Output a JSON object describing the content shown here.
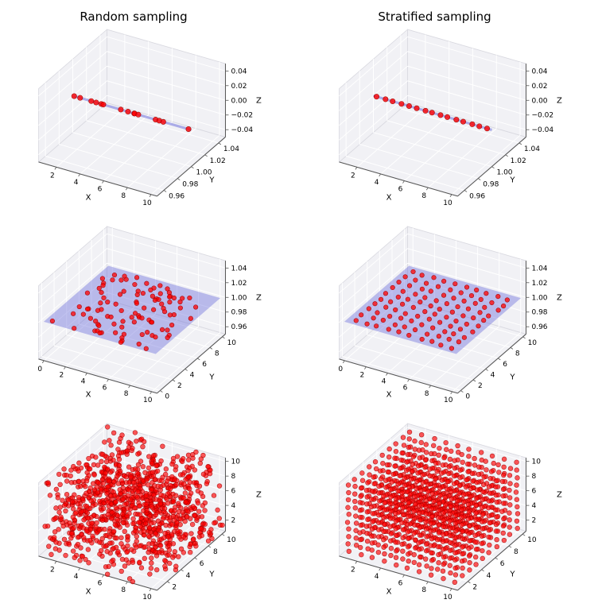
{
  "columns": [
    {
      "title": "Random sampling"
    },
    {
      "title": "Stratified sampling"
    }
  ],
  "chart_data": [
    {
      "id": "random-1d",
      "type": "scatter3d",
      "column": "Random sampling",
      "sampling": "random",
      "dims": 1,
      "n": 15,
      "seed": 7,
      "jitter": 0.3,
      "domain": {
        "x": [
          0.5,
          10.5
        ]
      },
      "fixed": {
        "y": 1.0,
        "z": 0.0
      },
      "overlay": {
        "kind": "line",
        "x": [
          0.5,
          10.5
        ],
        "color": "#6366d9",
        "alpha": 0.5
      },
      "xlabel": "X",
      "ylabel": "Y",
      "zlabel": "Z",
      "xlim": [
        0.5,
        10.5
      ],
      "ylim": [
        0.95,
        1.05
      ],
      "zlim": [
        -0.05,
        0.05
      ],
      "xticks": [
        2,
        4,
        6,
        8,
        10
      ],
      "xtick_labels": [
        "2",
        "4",
        "6",
        "8",
        "10"
      ],
      "yticks": [
        0.96,
        0.98,
        1.0,
        1.02,
        1.04
      ],
      "ytick_labels": [
        "0.96",
        "0.98",
        "1.00",
        "1.02",
        "1.04"
      ],
      "zticks": [
        -0.04,
        -0.02,
        0,
        0.02,
        0.04
      ],
      "ztick_labels": [
        "−0.04",
        "−0.02",
        "0.00",
        "0.02",
        "0.04"
      ],
      "marker": {
        "color": "#ff0000",
        "edge": "#a00000",
        "size": 3.2,
        "alpha": 0.8
      }
    },
    {
      "id": "stratified-1d",
      "type": "scatter3d",
      "column": "Stratified sampling",
      "sampling": "stratified",
      "dims": 1,
      "n": 15,
      "seed": 8,
      "jitter": 0.3,
      "domain": {
        "x": [
          0.5,
          10.5
        ]
      },
      "fixed": {
        "y": 1.0,
        "z": 0.0
      },
      "overlay": {
        "kind": "line",
        "x": [
          0.5,
          10.5
        ],
        "color": "#6366d9",
        "alpha": 0.5
      },
      "xlabel": "X",
      "ylabel": "Y",
      "zlabel": "Z",
      "xlim": [
        0.5,
        10.5
      ],
      "ylim": [
        0.95,
        1.05
      ],
      "zlim": [
        -0.05,
        0.05
      ],
      "xticks": [
        2,
        4,
        6,
        8,
        10
      ],
      "xtick_labels": [
        "2",
        "4",
        "6",
        "8",
        "10"
      ],
      "yticks": [
        0.96,
        0.98,
        1.0,
        1.02,
        1.04
      ],
      "ytick_labels": [
        "0.96",
        "0.98",
        "1.00",
        "1.02",
        "1.04"
      ],
      "zticks": [
        -0.04,
        -0.02,
        0,
        0.02,
        0.04
      ],
      "ztick_labels": [
        "−0.04",
        "−0.02",
        "0.00",
        "0.02",
        "0.04"
      ],
      "marker": {
        "color": "#ff0000",
        "edge": "#a00000",
        "size": 3.2,
        "alpha": 0.8
      }
    },
    {
      "id": "random-2d",
      "type": "scatter3d",
      "column": "Random sampling",
      "sampling": "random",
      "dims": 2,
      "n": 100,
      "seed": 21,
      "jitter": 0.25,
      "domain": {
        "x": [
          0,
          10
        ],
        "y": [
          0,
          10
        ]
      },
      "fixed": {
        "z": 1.0
      },
      "overlay": {
        "kind": "plane",
        "x": [
          -0.2,
          10.2
        ],
        "y": [
          -0.2,
          10.2
        ],
        "z": 1.0,
        "color": "#6366d9",
        "alpha": 0.4
      },
      "xlabel": "X",
      "ylabel": "Y",
      "zlabel": "Z",
      "xlim": [
        -0.5,
        10.5
      ],
      "ylim": [
        -0.5,
        10.5
      ],
      "zlim": [
        0.95,
        1.05
      ],
      "xticks": [
        0,
        2,
        4,
        6,
        8,
        10
      ],
      "xtick_labels": [
        "0",
        "2",
        "4",
        "6",
        "8",
        "10"
      ],
      "yticks": [
        0,
        2,
        4,
        6,
        8,
        10
      ],
      "ytick_labels": [
        "0",
        "2",
        "4",
        "6",
        "8",
        "10"
      ],
      "zticks": [
        0.96,
        0.98,
        1.0,
        1.02,
        1.04
      ],
      "ztick_labels": [
        "0.96",
        "0.98",
        "1.00",
        "1.02",
        "1.04"
      ],
      "marker": {
        "color": "#ff0000",
        "edge": "#a00000",
        "size": 2.8,
        "alpha": 0.75
      }
    },
    {
      "id": "stratified-2d",
      "type": "scatter3d",
      "column": "Stratified sampling",
      "sampling": "stratified",
      "dims": 2,
      "n": 100,
      "seed": 22,
      "jitter": 0.25,
      "domain": {
        "x": [
          0,
          10
        ],
        "y": [
          0,
          10
        ]
      },
      "fixed": {
        "z": 1.0
      },
      "overlay": {
        "kind": "plane",
        "x": [
          -0.2,
          10.2
        ],
        "y": [
          -0.2,
          10.2
        ],
        "z": 1.0,
        "color": "#6366d9",
        "alpha": 0.4
      },
      "xlabel": "X",
      "ylabel": "Y",
      "zlabel": "Z",
      "xlim": [
        -0.5,
        10.5
      ],
      "ylim": [
        -0.5,
        10.5
      ],
      "zlim": [
        0.95,
        1.05
      ],
      "xticks": [
        0,
        2,
        4,
        6,
        8,
        10
      ],
      "xtick_labels": [
        "0",
        "2",
        "4",
        "6",
        "8",
        "10"
      ],
      "yticks": [
        0,
        2,
        4,
        6,
        8,
        10
      ],
      "ytick_labels": [
        "0",
        "2",
        "4",
        "6",
        "8",
        "10"
      ],
      "zticks": [
        0.96,
        0.98,
        1.0,
        1.02,
        1.04
      ],
      "ztick_labels": [
        "0.96",
        "0.98",
        "1.00",
        "1.02",
        "1.04"
      ],
      "marker": {
        "color": "#ff0000",
        "edge": "#a00000",
        "size": 2.8,
        "alpha": 0.75
      }
    },
    {
      "id": "random-3d",
      "type": "scatter3d",
      "column": "Random sampling",
      "sampling": "random",
      "dims": 3,
      "n": 1000,
      "seed": 33,
      "jitter": 0.12,
      "domain": {
        "x": [
          0.5,
          10.5
        ],
        "y": [
          0.5,
          10.5
        ],
        "z": [
          0.5,
          10.5
        ]
      },
      "xlabel": "X",
      "ylabel": "Y",
      "zlabel": "Z",
      "xlim": [
        0.5,
        10.5
      ],
      "ylim": [
        0.5,
        10.5
      ],
      "zlim": [
        0.5,
        10.5
      ],
      "xticks": [
        2,
        4,
        6,
        8,
        10
      ],
      "xtick_labels": [
        "2",
        "4",
        "6",
        "8",
        "10"
      ],
      "yticks": [
        2,
        4,
        6,
        8,
        10
      ],
      "ytick_labels": [
        "2",
        "4",
        "6",
        "8",
        "10"
      ],
      "zticks": [
        2,
        4,
        6,
        8,
        10
      ],
      "ztick_labels": [
        "2",
        "4",
        "6",
        "8",
        "10"
      ],
      "marker": {
        "color": "#ff0000",
        "edge": "#a00000",
        "size": 2.9,
        "alpha": 0.65
      }
    },
    {
      "id": "stratified-3d",
      "type": "scatter3d",
      "column": "Stratified sampling",
      "sampling": "stratified",
      "dims": 3,
      "n": 1000,
      "seed": 34,
      "jitter": 0.12,
      "domain": {
        "x": [
          0.5,
          10.5
        ],
        "y": [
          0.5,
          10.5
        ],
        "z": [
          0.5,
          10.5
        ]
      },
      "xlabel": "X",
      "ylabel": "Y",
      "zlabel": "Z",
      "xlim": [
        0.5,
        10.5
      ],
      "ylim": [
        0.5,
        10.5
      ],
      "zlim": [
        0.5,
        10.5
      ],
      "xticks": [
        2,
        4,
        6,
        8,
        10
      ],
      "xtick_labels": [
        "2",
        "4",
        "6",
        "8",
        "10"
      ],
      "yticks": [
        2,
        4,
        6,
        8,
        10
      ],
      "ytick_labels": [
        "2",
        "4",
        "6",
        "8",
        "10"
      ],
      "zticks": [
        2,
        4,
        6,
        8,
        10
      ],
      "ztick_labels": [
        "2",
        "4",
        "6",
        "8",
        "10"
      ],
      "marker": {
        "color": "#ff0000",
        "edge": "#a00000",
        "size": 2.9,
        "alpha": 0.65
      }
    }
  ],
  "style": {
    "pane_color": "#f1f1f5",
    "pane_edge_color": "#d9d9e0",
    "grid_color": "#ffffff",
    "axis_line_color": "#555555",
    "text_color": "#000000"
  }
}
